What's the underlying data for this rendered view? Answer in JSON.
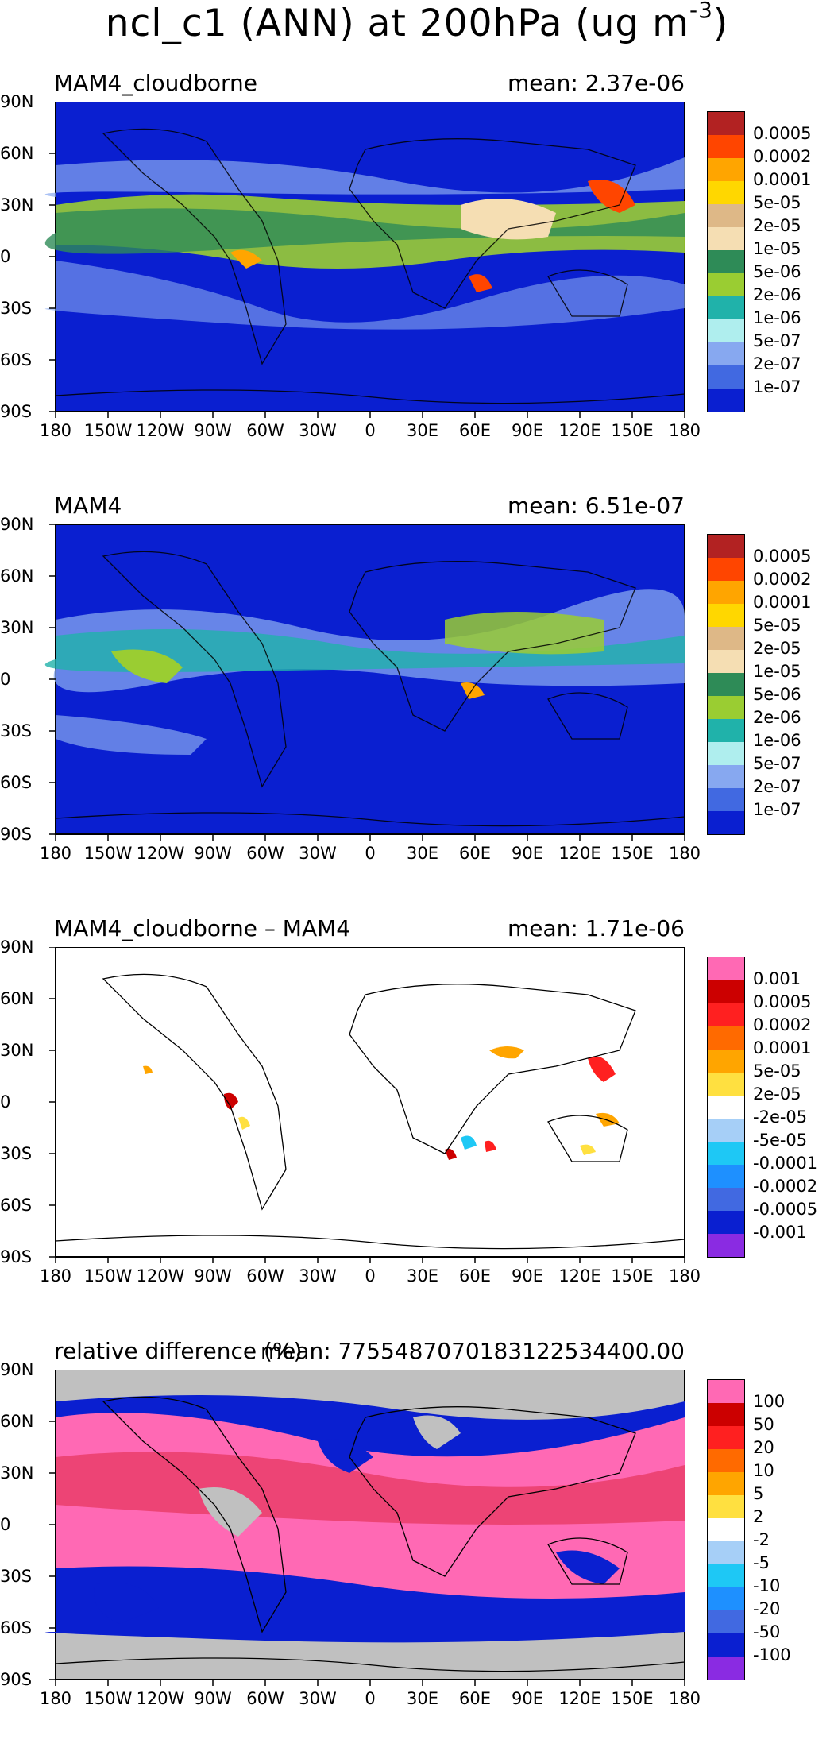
{
  "title": {
    "main": "ncl_c1 (ANN) at 200hPa (ug m",
    "sup": "-3",
    "close": ")"
  },
  "lat_labels": [
    "90N",
    "60N",
    "30N",
    "0",
    "30S",
    "60S",
    "90S"
  ],
  "lon_labels": [
    "180",
    "150W",
    "120W",
    "90W",
    "60W",
    "30W",
    "0",
    "30E",
    "60E",
    "90E",
    "120E",
    "150E",
    "180"
  ],
  "panels": [
    {
      "name": "MAM4_cloudborne",
      "mean": "mean: 2.37e-06",
      "background": "#0a1fd0",
      "colors": [
        "#b22222",
        "#ff4500",
        "#ffa500",
        "#ffd700",
        "#deb887",
        "#f5deb3",
        "#2e8b57",
        "#9acd32",
        "#20b2aa",
        "#afeeee",
        "#87a8f0",
        "#4169e1",
        "#0a1fd0"
      ],
      "labels": [
        "0.0005",
        "0.0002",
        "0.0001",
        "5e-05",
        "2e-05",
        "1e-05",
        "5e-06",
        "2e-06",
        "1e-06",
        "5e-07",
        "2e-07",
        "1e-07"
      ]
    },
    {
      "name": "MAM4",
      "mean": "mean: 6.51e-07",
      "background": "#0a1fd0",
      "colors": [
        "#b22222",
        "#ff4500",
        "#ffa500",
        "#ffd700",
        "#deb887",
        "#f5deb3",
        "#2e8b57",
        "#9acd32",
        "#20b2aa",
        "#afeeee",
        "#87a8f0",
        "#4169e1",
        "#0a1fd0"
      ],
      "labels": [
        "0.0005",
        "0.0002",
        "0.0001",
        "5e-05",
        "2e-05",
        "1e-05",
        "5e-06",
        "2e-06",
        "1e-06",
        "5e-07",
        "2e-07",
        "1e-07"
      ]
    },
    {
      "name": "MAM4_cloudborne – MAM4",
      "mean": "mean: 1.71e-06",
      "background": "#ffffff",
      "colors": [
        "#ff69b4",
        "#cc0000",
        "#ff2020",
        "#ff6a00",
        "#ffa500",
        "#ffe040",
        "#ffffff",
        "#a6cff7",
        "#1ec8f5",
        "#1e90ff",
        "#4169e1",
        "#0a1fd0",
        "#8a2be2"
      ],
      "labels": [
        "0.001",
        "0.0005",
        "0.0002",
        "0.0001",
        "5e-05",
        "2e-05",
        "-2e-05",
        "-5e-05",
        "-0.0001",
        "-0.0002",
        "-0.0005",
        "-0.001"
      ]
    },
    {
      "name": "relative difference (%)",
      "mean": "mean: 7755487070183122534400.00",
      "background": "#c0c0c0",
      "colors": [
        "#ff69b4",
        "#cc0000",
        "#ff2020",
        "#ff6a00",
        "#ffa500",
        "#ffe040",
        "#ffffff",
        "#a6cff7",
        "#1ec8f5",
        "#1e90ff",
        "#4169e1",
        "#0a1fd0",
        "#8a2be2"
      ],
      "labels": [
        "100",
        "50",
        "20",
        "10",
        "5",
        "2",
        "-2",
        "-5",
        "-10",
        "-20",
        "-50",
        "-100"
      ]
    }
  ]
}
